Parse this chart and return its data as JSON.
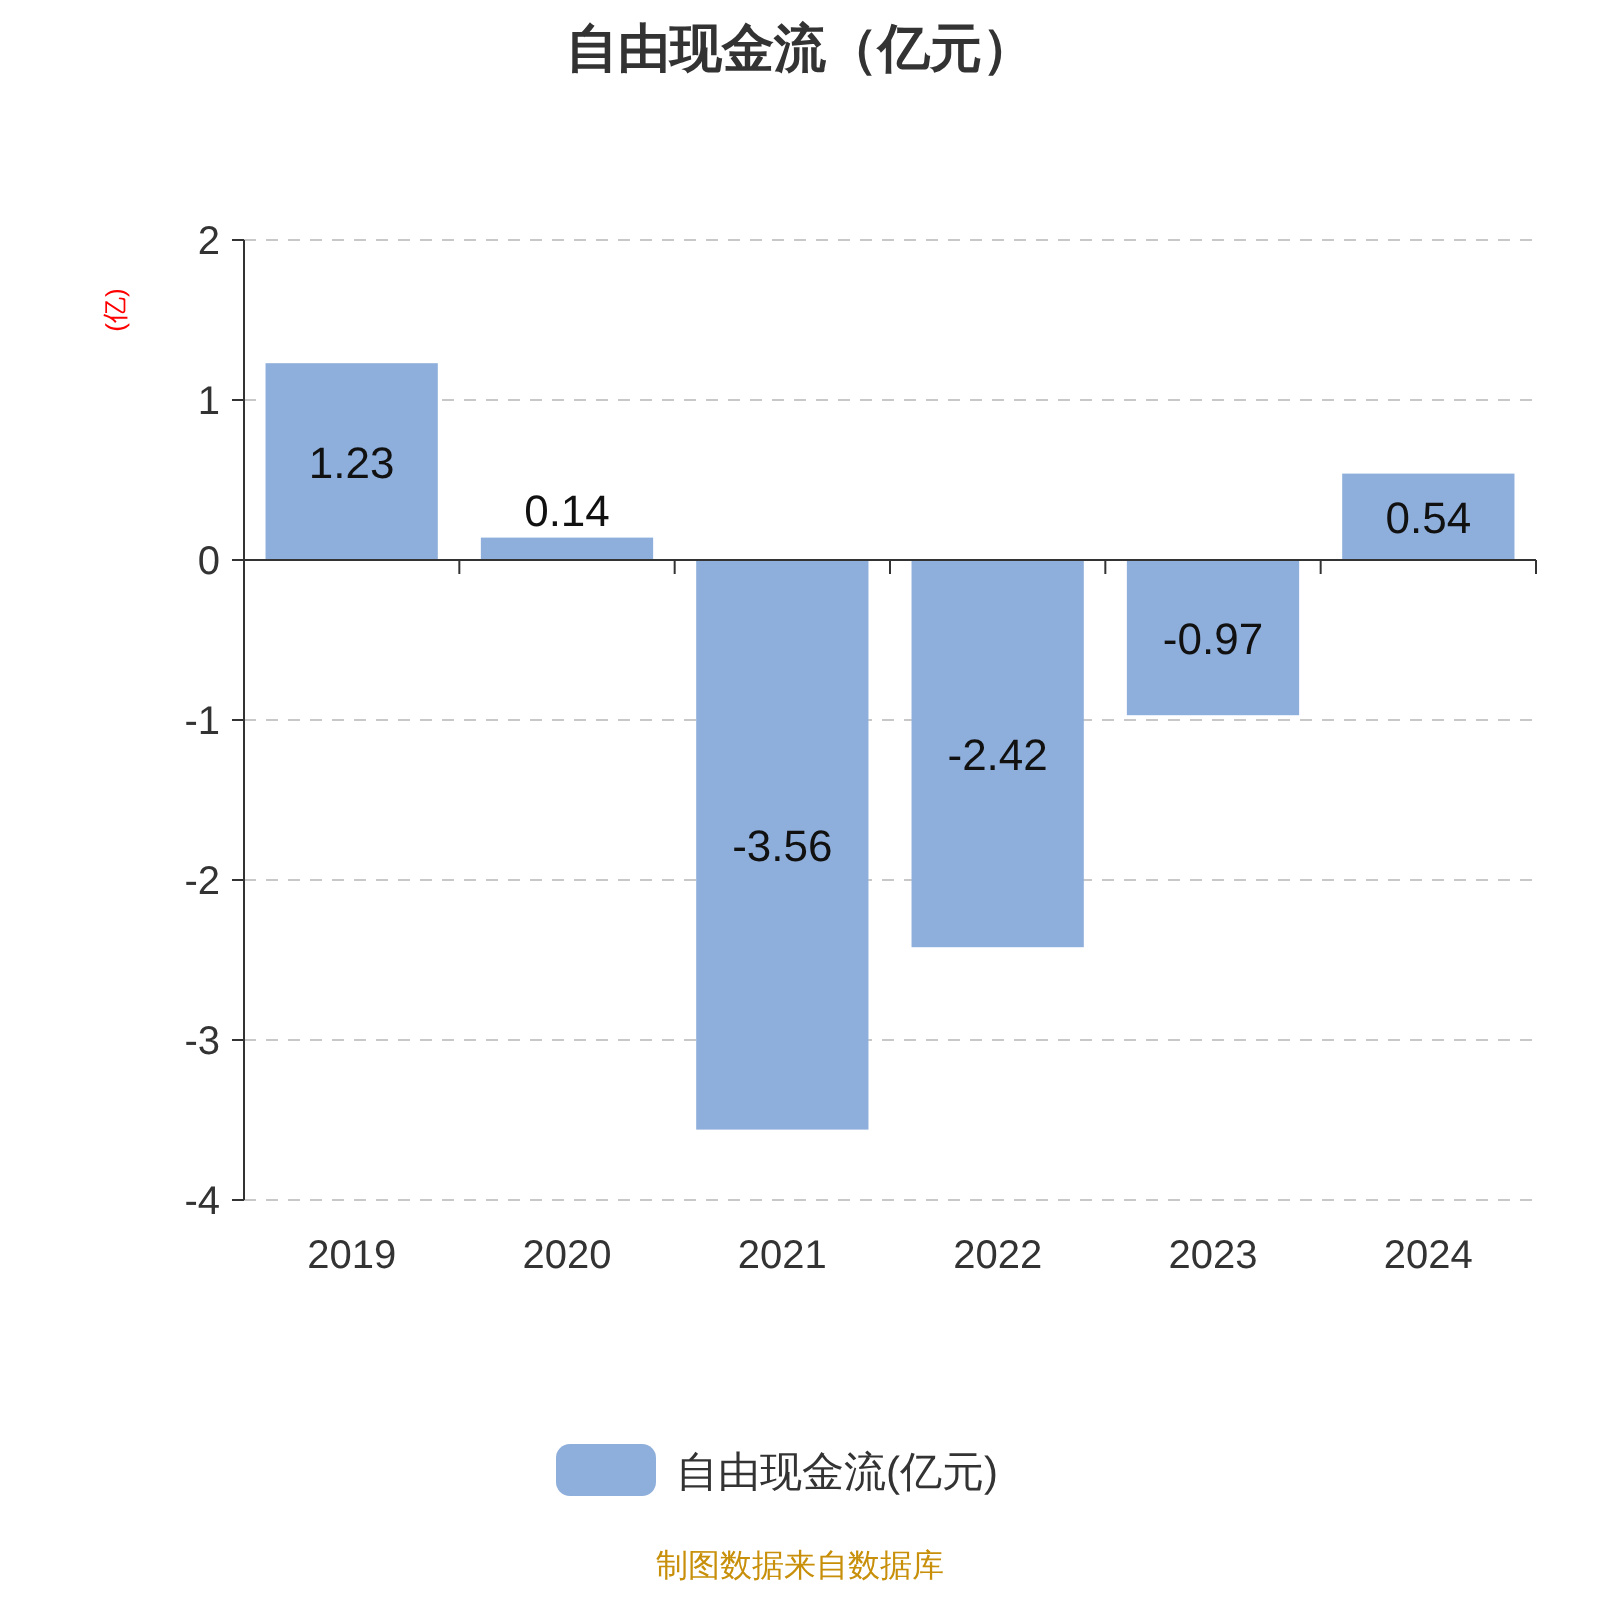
{
  "chart_data": {
    "type": "bar",
    "title": "自由现金流（亿元）",
    "ylabel": "(亿)",
    "categories": [
      "2019",
      "2020",
      "2021",
      "2022",
      "2023",
      "2024"
    ],
    "series": [
      {
        "name": "自由现金流(亿元)",
        "color": "#8eaedb",
        "values": [
          1.23,
          0.14,
          -3.56,
          -2.42,
          -0.97,
          0.54
        ]
      }
    ],
    "ylim": [
      -4,
      2
    ],
    "yticks": [
      -4,
      -3,
      -2,
      -1,
      0,
      1,
      2
    ],
    "grid": "y",
    "legend": "bottom",
    "data_labels": true,
    "annotations": [
      "制图数据来自数据库"
    ]
  }
}
